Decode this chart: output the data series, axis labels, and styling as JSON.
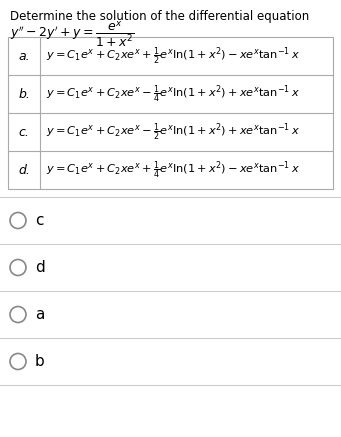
{
  "title_line1": "Determine the solution of the differential equation",
  "title_line2": "$y'' - 2y' + y = \\dfrac{e^x}{1+x^2}$",
  "options": [
    {
      "label": "a.",
      "formula": "$y = C_1e^x + C_2xe^x + \\frac{1}{2}e^x\\ln(1 + x^2) - xe^x\\tan^{-1}x$"
    },
    {
      "label": "b.",
      "formula": "$y = C_1e^x + C_2xe^x - \\frac{1}{4}e^x\\ln(1 + x^2) + xe^x\\tan^{-1}x$"
    },
    {
      "label": "c.",
      "formula": "$y = C_1e^x + C_2xe^x - \\frac{1}{2}e^x\\ln(1 + x^2) + xe^x\\tan^{-1}x$"
    },
    {
      "label": "d.",
      "formula": "$y = C_1e^x + C_2xe^x + \\frac{1}{4}e^x\\ln(1 + x^2) - xe^x\\tan^{-1}x$"
    }
  ],
  "radio_options": [
    "c",
    "d",
    "a",
    "b"
  ],
  "bg_color": "#ffffff",
  "border_color": "#aaaaaa",
  "text_color": "#000000",
  "divider_color": "#cccccc"
}
